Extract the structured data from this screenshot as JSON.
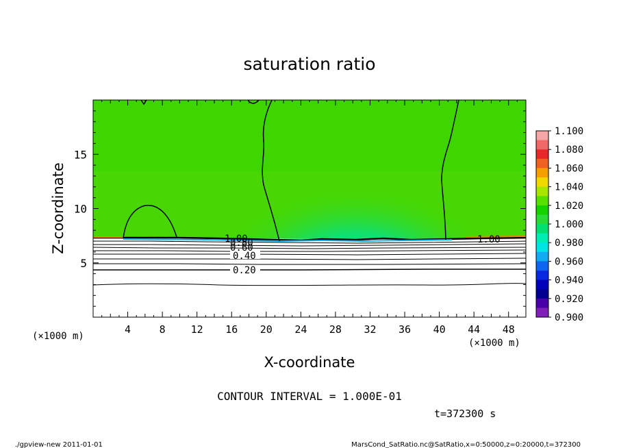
{
  "chart_data": {
    "type": "contour",
    "title": "saturation ratio",
    "xlabel": "X-coordinate",
    "ylabel": "Z-coordinate",
    "x_unit_left": "(×1000 m)",
    "x_unit_right": "(×1000 m)",
    "xlim": [
      0,
      50
    ],
    "ylim": [
      0,
      20
    ],
    "x_ticks": [
      "4",
      "8",
      "12",
      "16",
      "20",
      "24",
      "28",
      "32",
      "36",
      "40",
      "44",
      "48"
    ],
    "x_tick_values": [
      4,
      8,
      12,
      16,
      20,
      24,
      28,
      32,
      36,
      40,
      44,
      48
    ],
    "y_ticks": [
      "5",
      "10",
      "15"
    ],
    "y_tick_values": [
      5,
      10,
      15
    ],
    "contour_labels": [
      {
        "text": "1.00",
        "x": 16.5,
        "z": 7.1
      },
      {
        "text": "0.80",
        "x": 17.0,
        "z": 6.7
      },
      {
        "text": "0.60",
        "x": 17.0,
        "z": 6.3
      },
      {
        "text": "0.40",
        "x": 17.5,
        "z": 5.7
      },
      {
        "text": "0.20",
        "x": 17.5,
        "z": 4.3
      },
      {
        "text": "1.00",
        "x": 45.5,
        "z": 7.2
      }
    ],
    "colorbar": {
      "ticks": [
        "1.100",
        "1.080",
        "1.060",
        "1.040",
        "1.020",
        "1.000",
        "0.980",
        "0.960",
        "0.940",
        "0.920",
        "0.900"
      ],
      "colors": [
        "#f5a6a6",
        "#f06868",
        "#e82828",
        "#f06020",
        "#f5a000",
        "#f0d800",
        "#a8e800",
        "#58e000",
        "#14d200",
        "#28dc38",
        "#00e070",
        "#00ecb4",
        "#00e4e4",
        "#10aaf0",
        "#1064f0",
        "#0828e0",
        "#0000b8",
        "#000090",
        "#4800a8",
        "#8020b8"
      ],
      "range": [
        0.9,
        1.1
      ]
    },
    "contour_interval_text": "CONTOUR INTERVAL = 1.000E-01",
    "time_text": "t=372300 s"
  },
  "footer": {
    "left": "./gpview-new  2011-01-01",
    "right": "MarsCond_SatRatio.nc@SatRatio,x=0:50000,z=0:20000,t=372300"
  },
  "colors": {
    "field_green": "#3ed500",
    "field_green_light": "#5bdc10",
    "field_cyan": "#00e08a",
    "field_white": "#ffffff"
  }
}
